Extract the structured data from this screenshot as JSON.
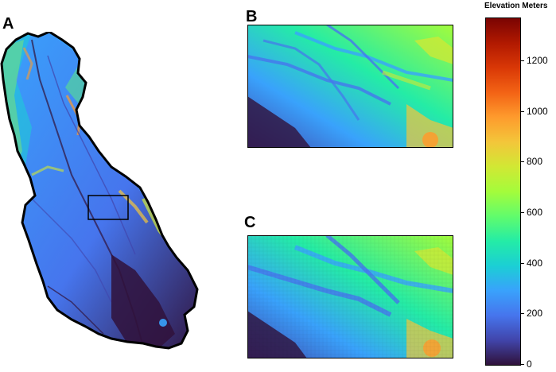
{
  "panels": [
    {
      "letter": "A"
    },
    {
      "letter": "B"
    },
    {
      "letter": "C"
    }
  ],
  "legend": {
    "title": "Elevation Meters",
    "min": 0,
    "max": 1370,
    "ticks": [
      "0",
      "200",
      "400",
      "600",
      "800",
      "1000",
      "1200"
    ],
    "tick_values": [
      0,
      200,
      400,
      600,
      800,
      1000,
      1200
    ],
    "colormap": [
      "#30123b",
      "#4145ab",
      "#4675ed",
      "#39a2fc",
      "#1bcfd4",
      "#24eca6",
      "#61fc6c",
      "#a4fc3b",
      "#d1e834",
      "#f3c63a",
      "#fe9b2d",
      "#f36315",
      "#d93806",
      "#b11901",
      "#7a0402"
    ]
  },
  "inset_box": {
    "present": true
  }
}
